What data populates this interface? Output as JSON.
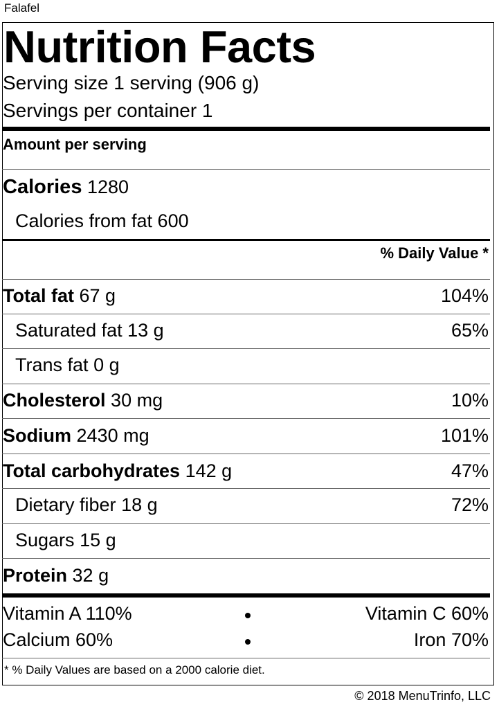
{
  "product_name": "Falafel",
  "title": "Nutrition Facts",
  "serving_size": "Serving size 1 serving (906 g)",
  "servings_per_container": "Servings per container 1",
  "amount_per_serving": "Amount per serving",
  "calories": {
    "label": "Calories",
    "value": "1280"
  },
  "calories_from_fat": "Calories from fat 600",
  "daily_value_header": "% Daily Value *",
  "nutrients": [
    {
      "name": "Total fat",
      "amount": "67 g",
      "dv": "104%"
    },
    {
      "name": "Saturated fat",
      "amount": "13 g",
      "dv": "65%"
    },
    {
      "name": "Trans fat",
      "amount": "0 g",
      "dv": ""
    },
    {
      "name": "Cholesterol",
      "amount": "30 mg",
      "dv": "10%"
    },
    {
      "name": "Sodium",
      "amount": "2430 mg",
      "dv": "101%"
    },
    {
      "name": "Total carbohydrates",
      "amount": "142 g",
      "dv": "47%"
    },
    {
      "name": "Dietary fiber",
      "amount": "18 g",
      "dv": "72%"
    },
    {
      "name": "Sugars",
      "amount": "15 g",
      "dv": ""
    },
    {
      "name": "Protein",
      "amount": "32 g",
      "dv": ""
    }
  ],
  "vitamins": {
    "vitamin_a": "Vitamin A 110%",
    "vitamin_c": "Vitamin C 60%",
    "calcium": "Calcium 60%",
    "iron": "Iron 70%"
  },
  "footnote": "* % Daily Values are based on a 2000 calorie diet.",
  "copyright": "© 2018 MenuTrinfo, LLC"
}
